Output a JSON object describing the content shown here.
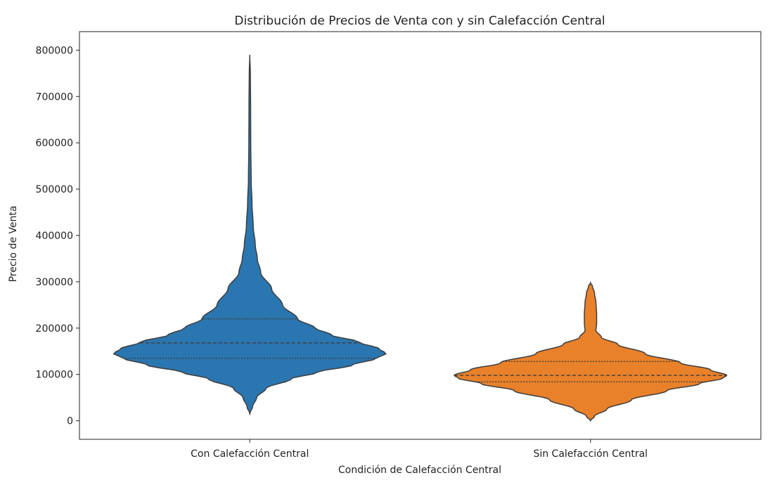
{
  "chart_data": {
    "type": "violin",
    "title": "Distribución de Precios de Venta con y sin Calefacción Central",
    "xlabel": "Condición de Calefacción Central",
    "ylabel": "Precio de Venta",
    "ylim": [
      -40000,
      840000
    ],
    "yticks": [
      0,
      100000,
      200000,
      300000,
      400000,
      500000,
      600000,
      700000,
      800000
    ],
    "ytick_labels": [
      "0",
      "100000",
      "200000",
      "300000",
      "400000",
      "500000",
      "600000",
      "700000",
      "800000"
    ],
    "categories": [
      "Con Calefacción Central",
      "Sin Calefacción Central"
    ],
    "grid": false,
    "legend": "none",
    "series": [
      {
        "category": "Con Calefacción Central",
        "color": "#2a76b0",
        "min": 15000,
        "max": 790000,
        "q1": 135000,
        "median": 168000,
        "q3": 220000,
        "density_profile": [
          [
            15000,
            0.0
          ],
          [
            30000,
            0.02
          ],
          [
            50000,
            0.05
          ],
          [
            70000,
            0.12
          ],
          [
            90000,
            0.3
          ],
          [
            105000,
            0.5
          ],
          [
            120000,
            0.75
          ],
          [
            135000,
            0.93
          ],
          [
            145000,
            1.0
          ],
          [
            155000,
            0.95
          ],
          [
            170000,
            0.8
          ],
          [
            185000,
            0.6
          ],
          [
            200000,
            0.48
          ],
          [
            220000,
            0.35
          ],
          [
            250000,
            0.24
          ],
          [
            285000,
            0.16
          ],
          [
            320000,
            0.08
          ],
          [
            350000,
            0.055
          ],
          [
            380000,
            0.04
          ],
          [
            420000,
            0.025
          ],
          [
            470000,
            0.016
          ],
          [
            520000,
            0.01
          ],
          [
            600000,
            0.007
          ],
          [
            680000,
            0.006
          ],
          [
            750000,
            0.004
          ],
          [
            790000,
            0.0
          ]
        ]
      },
      {
        "category": "Sin Calefacción Central",
        "color": "#e8812a",
        "min": 0,
        "max": 298000,
        "q1": 84000,
        "median": 98000,
        "q3": 128000,
        "density_profile": [
          [
            0,
            0.0
          ],
          [
            10000,
            0.03
          ],
          [
            25000,
            0.12
          ],
          [
            45000,
            0.3
          ],
          [
            65000,
            0.56
          ],
          [
            80000,
            0.8
          ],
          [
            92000,
            0.97
          ],
          [
            98000,
            1.0
          ],
          [
            110000,
            0.88
          ],
          [
            125000,
            0.66
          ],
          [
            145000,
            0.4
          ],
          [
            165000,
            0.2
          ],
          [
            180000,
            0.08
          ],
          [
            195000,
            0.04
          ],
          [
            210000,
            0.045
          ],
          [
            230000,
            0.045
          ],
          [
            255000,
            0.04
          ],
          [
            275000,
            0.03
          ],
          [
            290000,
            0.015
          ],
          [
            298000,
            0.0
          ]
        ]
      }
    ]
  }
}
